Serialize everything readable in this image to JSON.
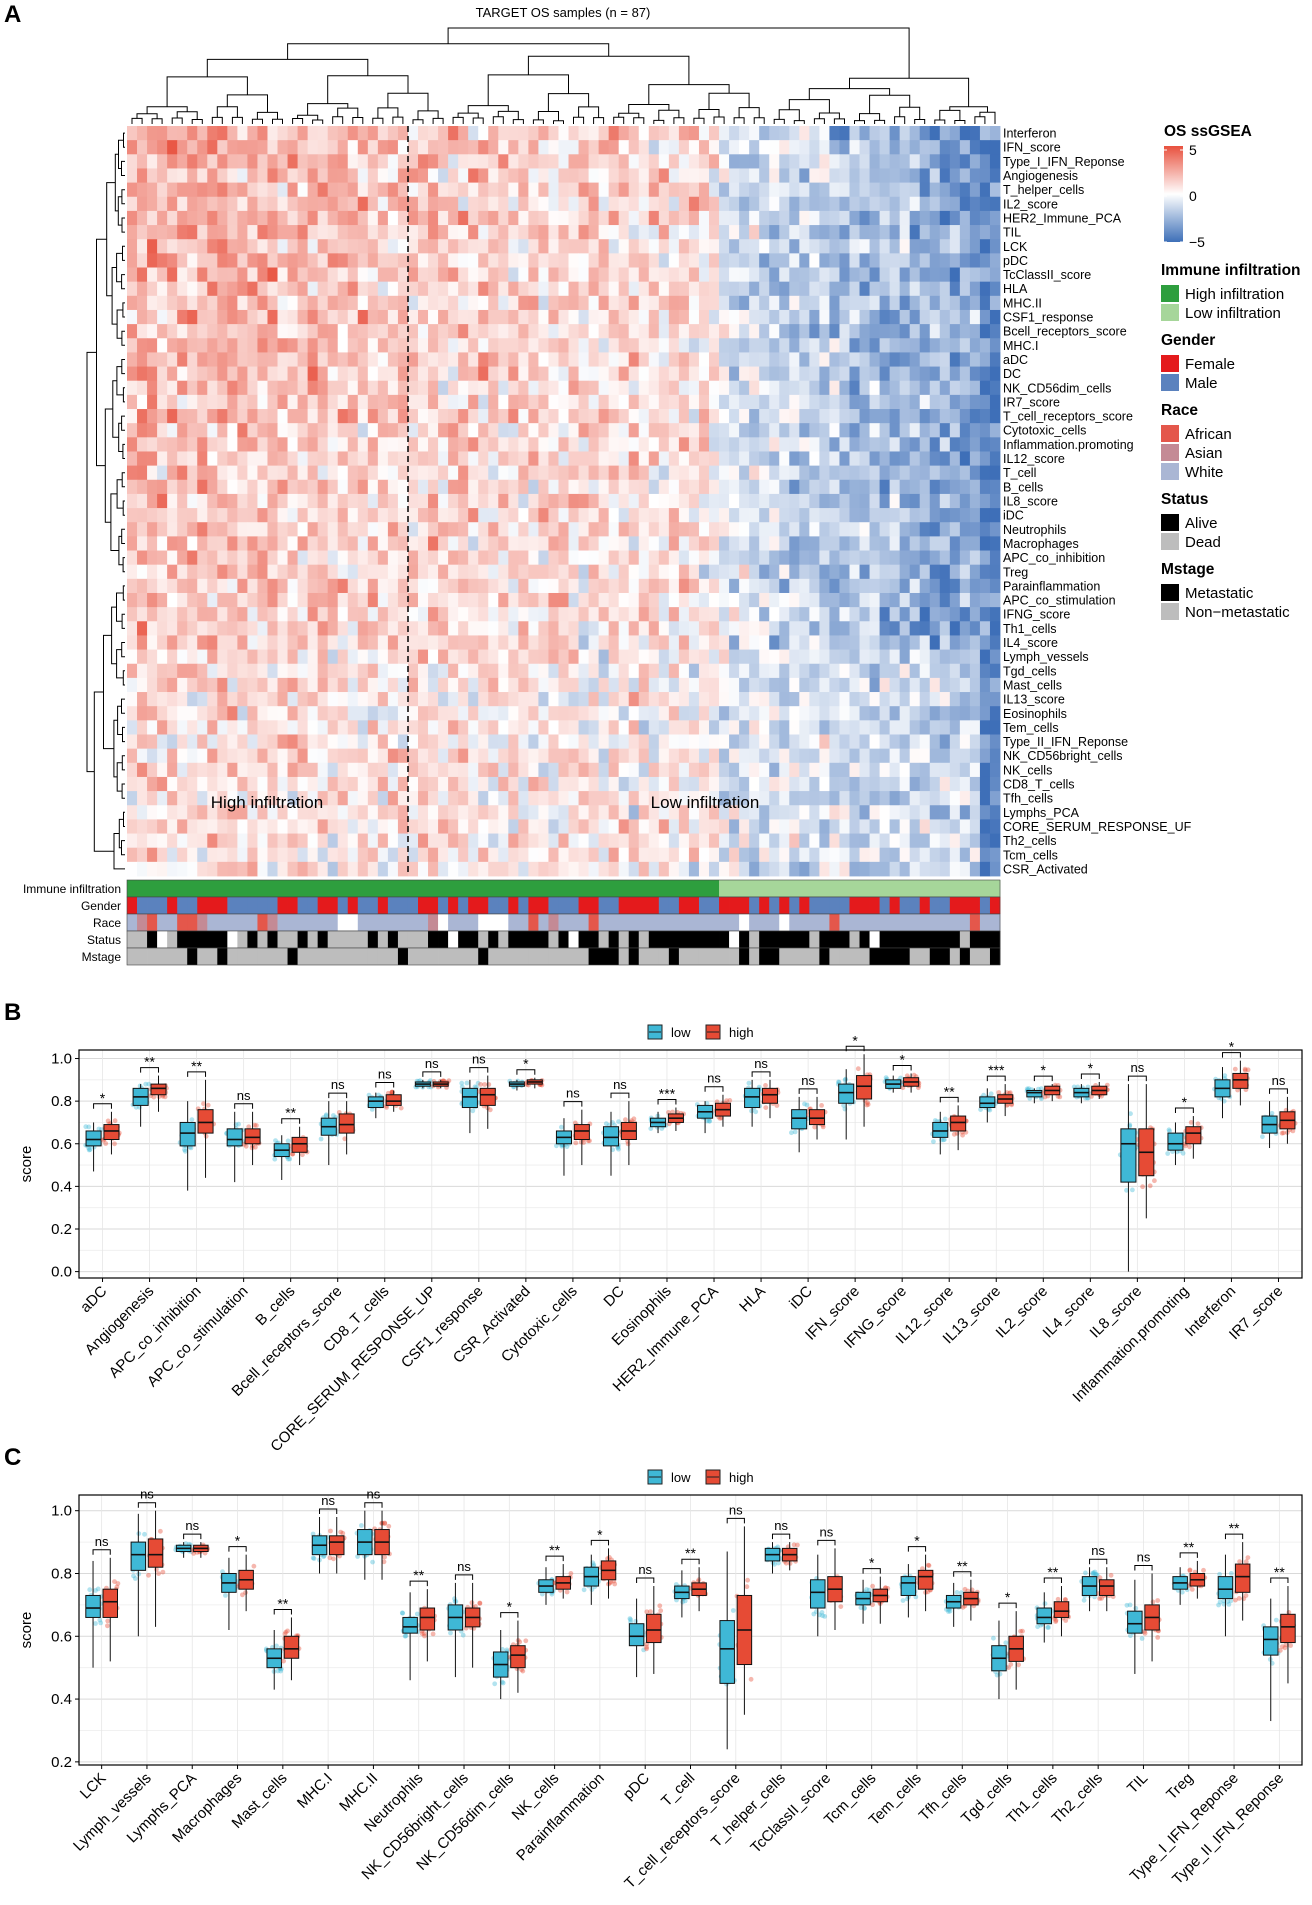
{
  "colors": {
    "red": "#E64B35",
    "blue": "#3FB8D6",
    "heat_high": "#E8513E",
    "heat_mid": "#FFFFFF",
    "heat_low": "#3E6FB8",
    "high_infiltration": "#2E9E3E",
    "low_infiltration": "#A6D69A",
    "female": "#E41A1C",
    "male": "#5B82BE",
    "african": "#E4574B",
    "asian": "#C48A95",
    "white": "#AAB6D4",
    "alive": "#000000",
    "dead": "#BDBDBD"
  },
  "panel_labels": {
    "a": "A",
    "b": "B",
    "c": "C"
  },
  "chart_data": [
    {
      "type": "heatmap",
      "title": "TARGET OS samples (n = 87)",
      "n_samples": 87,
      "n_high": 59,
      "rows": [
        "Interferon",
        "IFN_score",
        "Type_I_IFN_Reponse",
        "Angiogenesis",
        "T_helper_cells",
        "IL2_score",
        "HER2_Immune_PCA",
        "TIL",
        "LCK",
        "pDC",
        "TcClassII_score",
        "HLA",
        "MHC.II",
        "CSF1_response",
        "Bcell_receptors_score",
        "MHC.I",
        "aDC",
        "DC",
        "NK_CD56dim_cells",
        "IR7_score",
        "T_cell_receptors_score",
        "Cytotoxic_cells",
        "Inflammation.promoting",
        "IL12_score",
        "T_cell",
        "B_cells",
        "IL8_score",
        "iDC",
        "Neutrophils",
        "Macrophages",
        "APC_co_inhibition",
        "Treg",
        "Parainflammation",
        "APC_co_stimulation",
        "IFNG_score",
        "Th1_cells",
        "IL4_score",
        "Lymph_vessels",
        "Tgd_cells",
        "Mast_cells",
        "IL13_score",
        "Eosinophils",
        "Tem_cells",
        "Type_II_IFN_Reponse",
        "NK_CD56bright_cells",
        "NK_cells",
        "CD8_T_cells",
        "Tfh_cells",
        "Lymphs_PCA",
        "CORE_SERUM_RESPONSE_UP",
        "Th2_cells",
        "Tcm_cells",
        "CSR_Activated"
      ],
      "row_display_last_truncated": "CORE_SERUM_RESPONSE_UF",
      "region_labels": {
        "high": "High infiltration",
        "low": "Low infiltration"
      },
      "annotation_rows": [
        "Immune infiltration",
        "Gender",
        "Race",
        "Status",
        "Mstage"
      ],
      "legend": {
        "title": "OS ssGSEA",
        "ticks": [
          "5",
          "0",
          "−5"
        ],
        "scale_range": [
          -5,
          5
        ],
        "groups": [
          {
            "title": "Immune infiltration",
            "items": [
              "High infiltration",
              "Low infiltration"
            ]
          },
          {
            "title": "Gender",
            "items": [
              "Female",
              "Male"
            ]
          },
          {
            "title": "Race",
            "items": [
              "African",
              "Asian",
              "White"
            ]
          },
          {
            "title": "Status",
            "items": [
              "Alive",
              "Dead"
            ]
          },
          {
            "title": "Mstage",
            "items": [
              "Metastatic",
              "Non−metastatic"
            ]
          }
        ]
      }
    },
    {
      "type": "box",
      "panel": "B",
      "ylabel": "score",
      "ylim": [
        -0.03,
        1.04
      ],
      "yticks": [
        "0.0",
        "0.2",
        "0.4",
        "0.6",
        "0.8",
        "1.0"
      ],
      "legend": [
        "low",
        "high"
      ],
      "categories": [
        "aDC",
        "Angiogenesis",
        "APC_co_inhibition",
        "APC_co_stimulation",
        "B_cells",
        "Bcell_receptors_score",
        "CD8_T_cells",
        "CORE_SERUM_RESPONSE_UP",
        "CSF1_response",
        "CSR_Activated",
        "Cytotoxic_cells",
        "DC",
        "Eosinophils",
        "HER2_Immune_PCA",
        "HLA",
        "iDC",
        "IFN_score",
        "IFNG_score",
        "IL12_score",
        "IL13_score",
        "IL2_score",
        "IL4_score",
        "IL8_score",
        "Inflammation.promoting",
        "Interferon",
        "IR7_score"
      ],
      "significance": [
        "*",
        "**",
        "**",
        "ns",
        "**",
        "ns",
        "ns",
        "ns",
        "ns",
        "*",
        "ns",
        "ns",
        "***",
        "ns",
        "ns",
        "ns",
        "*",
        "*",
        "**",
        "***",
        "*",
        "*",
        "ns",
        "*",
        "*",
        "ns"
      ],
      "low": [
        [
          0.47,
          0.59,
          0.62,
          0.66,
          0.7
        ],
        [
          0.68,
          0.78,
          0.82,
          0.86,
          0.88
        ],
        [
          0.38,
          0.59,
          0.65,
          0.7,
          0.8
        ],
        [
          0.42,
          0.59,
          0.62,
          0.67,
          0.75
        ],
        [
          0.43,
          0.54,
          0.57,
          0.6,
          0.64
        ],
        [
          0.5,
          0.64,
          0.68,
          0.72,
          0.8
        ],
        [
          0.72,
          0.77,
          0.8,
          0.82,
          0.84
        ],
        [
          0.86,
          0.87,
          0.88,
          0.89,
          0.9
        ],
        [
          0.65,
          0.77,
          0.82,
          0.86,
          0.9
        ],
        [
          0.85,
          0.87,
          0.88,
          0.89,
          0.9
        ],
        [
          0.45,
          0.6,
          0.63,
          0.66,
          0.72
        ],
        [
          0.45,
          0.59,
          0.63,
          0.68,
          0.75
        ],
        [
          0.65,
          0.68,
          0.7,
          0.72,
          0.75
        ],
        [
          0.65,
          0.72,
          0.75,
          0.78,
          0.8
        ],
        [
          0.68,
          0.77,
          0.82,
          0.86,
          0.9
        ],
        [
          0.56,
          0.67,
          0.72,
          0.76,
          0.82
        ],
        [
          0.62,
          0.79,
          0.84,
          0.88,
          0.95
        ],
        [
          0.84,
          0.86,
          0.88,
          0.9,
          0.92
        ],
        [
          0.55,
          0.63,
          0.66,
          0.7,
          0.75
        ],
        [
          0.7,
          0.77,
          0.79,
          0.82,
          0.86
        ],
        [
          0.79,
          0.82,
          0.84,
          0.85,
          0.86
        ],
        [
          0.79,
          0.82,
          0.84,
          0.86,
          0.88
        ],
        [
          0.0,
          0.42,
          0.6,
          0.67,
          0.88
        ],
        [
          0.5,
          0.57,
          0.6,
          0.65,
          0.7
        ],
        [
          0.72,
          0.82,
          0.86,
          0.9,
          0.96
        ],
        [
          0.58,
          0.65,
          0.69,
          0.73,
          0.8
        ]
      ],
      "high": [
        [
          0.55,
          0.62,
          0.66,
          0.69,
          0.75
        ],
        [
          0.75,
          0.83,
          0.86,
          0.88,
          0.92
        ],
        [
          0.44,
          0.65,
          0.7,
          0.76,
          0.9
        ],
        [
          0.5,
          0.6,
          0.63,
          0.67,
          0.75
        ],
        [
          0.5,
          0.56,
          0.6,
          0.63,
          0.68
        ],
        [
          0.55,
          0.65,
          0.69,
          0.74,
          0.8
        ],
        [
          0.75,
          0.78,
          0.8,
          0.83,
          0.85
        ],
        [
          0.86,
          0.87,
          0.88,
          0.89,
          0.9
        ],
        [
          0.67,
          0.78,
          0.83,
          0.86,
          0.92
        ],
        [
          0.86,
          0.88,
          0.89,
          0.9,
          0.91
        ],
        [
          0.5,
          0.62,
          0.66,
          0.69,
          0.76
        ],
        [
          0.5,
          0.62,
          0.66,
          0.7,
          0.8
        ],
        [
          0.66,
          0.7,
          0.72,
          0.74,
          0.77
        ],
        [
          0.68,
          0.73,
          0.76,
          0.79,
          0.83
        ],
        [
          0.72,
          0.79,
          0.83,
          0.86,
          0.9
        ],
        [
          0.62,
          0.69,
          0.72,
          0.76,
          0.82
        ],
        [
          0.68,
          0.81,
          0.87,
          0.92,
          1.02
        ],
        [
          0.84,
          0.87,
          0.89,
          0.91,
          0.93
        ],
        [
          0.57,
          0.66,
          0.7,
          0.73,
          0.78
        ],
        [
          0.73,
          0.79,
          0.81,
          0.83,
          0.88
        ],
        [
          0.8,
          0.83,
          0.85,
          0.87,
          0.88
        ],
        [
          0.81,
          0.83,
          0.85,
          0.87,
          0.89
        ],
        [
          0.25,
          0.45,
          0.56,
          0.67,
          0.88
        ],
        [
          0.53,
          0.6,
          0.65,
          0.68,
          0.73
        ],
        [
          0.78,
          0.86,
          0.9,
          0.93,
          0.99
        ],
        [
          0.6,
          0.67,
          0.71,
          0.75,
          0.82
        ]
      ]
    },
    {
      "type": "box",
      "panel": "C",
      "ylabel": "score",
      "ylim": [
        0.19,
        1.05
      ],
      "yticks": [
        "0.2",
        "0.4",
        "0.6",
        "0.8",
        "1.0"
      ],
      "legend": [
        "low",
        "high"
      ],
      "categories": [
        "LCK",
        "Lymph_vessels",
        "Lymphs_PCA",
        "Macrophages",
        "Mast_cells",
        "MHC.I",
        "MHC.II",
        "Neutrophils",
        "NK_CD56bright_cells",
        "NK_CD56dim_cells",
        "NK_cells",
        "Parainflammation",
        "pDC",
        "T_cell",
        "T_cell_receptors_score",
        "T_helper_cells",
        "TcClassII_score",
        "Tcm_cells",
        "Tem_cells",
        "Tfh_cells",
        "Tgd_cells",
        "Th1_cells",
        "Th2_cells",
        "TIL",
        "Treg",
        "Type_I_IFN_Reponse",
        "Type_II_IFN_Reponse"
      ],
      "significance": [
        "ns",
        "ns",
        "ns",
        "*",
        "**",
        "ns",
        "ns",
        "**",
        "ns",
        "*",
        "**",
        "*",
        "ns",
        "**",
        "ns",
        "ns",
        "ns",
        "*",
        "*",
        "**",
        "*",
        "**",
        "ns",
        "ns",
        "**",
        "**",
        "**"
      ],
      "low": [
        [
          0.5,
          0.66,
          0.69,
          0.73,
          0.84
        ],
        [
          0.6,
          0.81,
          0.86,
          0.9,
          0.99
        ],
        [
          0.85,
          0.87,
          0.88,
          0.89,
          0.9
        ],
        [
          0.62,
          0.74,
          0.77,
          0.8,
          0.85
        ],
        [
          0.43,
          0.5,
          0.53,
          0.56,
          0.62
        ],
        [
          0.8,
          0.86,
          0.89,
          0.92,
          0.98
        ],
        [
          0.78,
          0.86,
          0.9,
          0.94,
          1.0
        ],
        [
          0.46,
          0.61,
          0.63,
          0.66,
          0.74
        ],
        [
          0.47,
          0.62,
          0.66,
          0.7,
          0.77
        ],
        [
          0.4,
          0.47,
          0.51,
          0.55,
          0.62
        ],
        [
          0.7,
          0.74,
          0.76,
          0.78,
          0.82
        ],
        [
          0.7,
          0.76,
          0.79,
          0.82,
          0.86
        ],
        [
          0.47,
          0.57,
          0.6,
          0.64,
          0.72
        ],
        [
          0.66,
          0.72,
          0.74,
          0.76,
          0.81
        ],
        [
          0.24,
          0.45,
          0.56,
          0.65,
          0.87
        ],
        [
          0.8,
          0.84,
          0.86,
          0.88,
          0.9
        ],
        [
          0.6,
          0.69,
          0.74,
          0.78,
          0.86
        ],
        [
          0.64,
          0.7,
          0.72,
          0.74,
          0.78
        ],
        [
          0.66,
          0.73,
          0.77,
          0.79,
          0.83
        ],
        [
          0.63,
          0.69,
          0.71,
          0.73,
          0.77
        ],
        [
          0.4,
          0.49,
          0.53,
          0.57,
          0.65
        ],
        [
          0.58,
          0.64,
          0.66,
          0.69,
          0.74
        ],
        [
          0.68,
          0.73,
          0.76,
          0.79,
          0.82
        ],
        [
          0.48,
          0.61,
          0.64,
          0.68,
          0.78
        ],
        [
          0.7,
          0.75,
          0.77,
          0.79,
          0.82
        ],
        [
          0.6,
          0.72,
          0.75,
          0.79,
          0.86
        ],
        [
          0.33,
          0.54,
          0.59,
          0.63,
          0.72
        ]
      ],
      "high": [
        [
          0.52,
          0.66,
          0.71,
          0.75,
          0.85
        ],
        [
          0.63,
          0.82,
          0.86,
          0.91,
          1.0
        ],
        [
          0.85,
          0.87,
          0.88,
          0.89,
          0.9
        ],
        [
          0.68,
          0.75,
          0.78,
          0.81,
          0.86
        ],
        [
          0.46,
          0.53,
          0.56,
          0.6,
          0.66
        ],
        [
          0.8,
          0.86,
          0.9,
          0.92,
          0.98
        ],
        [
          0.78,
          0.86,
          0.9,
          0.94,
          1.0
        ],
        [
          0.52,
          0.62,
          0.66,
          0.69,
          0.75
        ],
        [
          0.5,
          0.63,
          0.66,
          0.69,
          0.77
        ],
        [
          0.42,
          0.5,
          0.54,
          0.57,
          0.65
        ],
        [
          0.72,
          0.75,
          0.77,
          0.79,
          0.83
        ],
        [
          0.72,
          0.78,
          0.81,
          0.84,
          0.88
        ],
        [
          0.48,
          0.58,
          0.62,
          0.67,
          0.76
        ],
        [
          0.68,
          0.73,
          0.75,
          0.77,
          0.82
        ],
        [
          0.35,
          0.51,
          0.62,
          0.73,
          0.95
        ],
        [
          0.81,
          0.84,
          0.86,
          0.88,
          0.9
        ],
        [
          0.62,
          0.71,
          0.75,
          0.79,
          0.88
        ],
        [
          0.64,
          0.71,
          0.73,
          0.75,
          0.79
        ],
        [
          0.68,
          0.75,
          0.79,
          0.81,
          0.86
        ],
        [
          0.65,
          0.7,
          0.72,
          0.74,
          0.78
        ],
        [
          0.43,
          0.52,
          0.56,
          0.6,
          0.68
        ],
        [
          0.6,
          0.66,
          0.68,
          0.71,
          0.76
        ],
        [
          0.68,
          0.73,
          0.76,
          0.78,
          0.82
        ],
        [
          0.52,
          0.62,
          0.66,
          0.7,
          0.8
        ],
        [
          0.72,
          0.76,
          0.78,
          0.8,
          0.84
        ],
        [
          0.65,
          0.74,
          0.79,
          0.83,
          0.9
        ],
        [
          0.45,
          0.58,
          0.63,
          0.67,
          0.76
        ]
      ]
    }
  ]
}
